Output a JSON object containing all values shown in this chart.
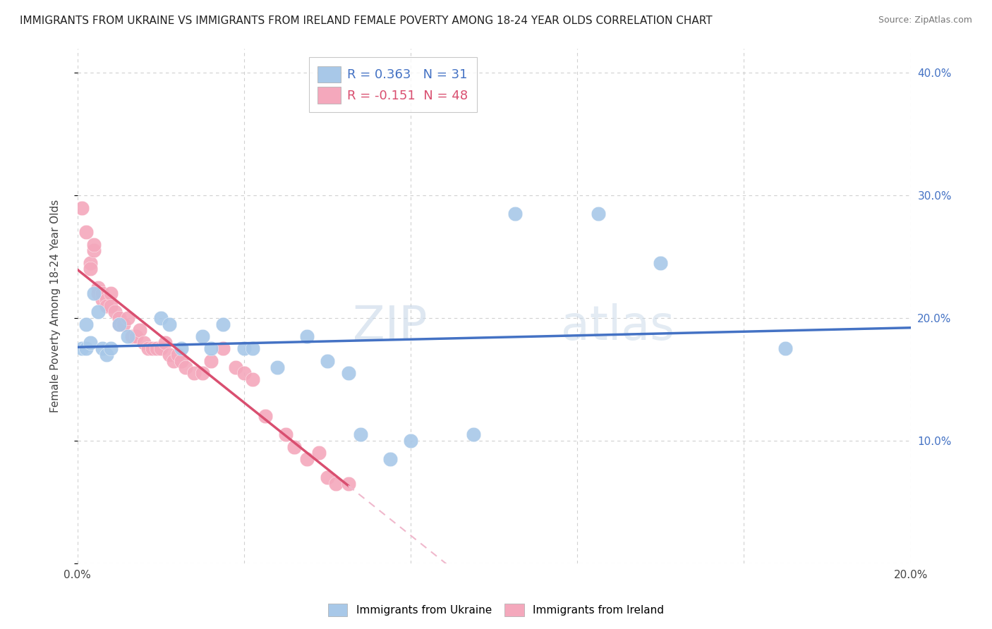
{
  "title": "IMMIGRANTS FROM UKRAINE VS IMMIGRANTS FROM IRELAND FEMALE POVERTY AMONG 18-24 YEAR OLDS CORRELATION CHART",
  "source": "Source: ZipAtlas.com",
  "ylabel": "Female Poverty Among 18-24 Year Olds",
  "xlim": [
    0.0,
    0.2
  ],
  "ylim": [
    0.0,
    0.42
  ],
  "xticks": [
    0.0,
    0.04,
    0.08,
    0.12,
    0.16,
    0.2
  ],
  "yticks": [
    0.0,
    0.1,
    0.2,
    0.3,
    0.4
  ],
  "ukraine_color": "#a8c8e8",
  "ireland_color": "#f4a8bc",
  "ukraine_line_color": "#4472c4",
  "ireland_line_color": "#d94f70",
  "ireland_line_dashed_color": "#f0b8cc",
  "R_ukraine": 0.363,
  "N_ukraine": 31,
  "R_ireland": -0.151,
  "N_ireland": 48,
  "watermark": "ZIPatlas",
  "background_color": "#ffffff",
  "grid_color": "#d0d0d0",
  "ukraine_scatter": [
    [
      0.001,
      0.175
    ],
    [
      0.002,
      0.195
    ],
    [
      0.002,
      0.175
    ],
    [
      0.003,
      0.18
    ],
    [
      0.004,
      0.22
    ],
    [
      0.005,
      0.205
    ],
    [
      0.006,
      0.175
    ],
    [
      0.007,
      0.17
    ],
    [
      0.008,
      0.175
    ],
    [
      0.01,
      0.195
    ],
    [
      0.012,
      0.185
    ],
    [
      0.02,
      0.2
    ],
    [
      0.022,
      0.195
    ],
    [
      0.025,
      0.175
    ],
    [
      0.03,
      0.185
    ],
    [
      0.032,
      0.175
    ],
    [
      0.035,
      0.195
    ],
    [
      0.04,
      0.175
    ],
    [
      0.042,
      0.175
    ],
    [
      0.048,
      0.16
    ],
    [
      0.055,
      0.185
    ],
    [
      0.06,
      0.165
    ],
    [
      0.065,
      0.155
    ],
    [
      0.068,
      0.105
    ],
    [
      0.075,
      0.085
    ],
    [
      0.08,
      0.1
    ],
    [
      0.095,
      0.105
    ],
    [
      0.105,
      0.285
    ],
    [
      0.125,
      0.285
    ],
    [
      0.14,
      0.245
    ],
    [
      0.17,
      0.175
    ]
  ],
  "ireland_scatter": [
    [
      0.001,
      0.29
    ],
    [
      0.002,
      0.27
    ],
    [
      0.003,
      0.245
    ],
    [
      0.003,
      0.24
    ],
    [
      0.004,
      0.255
    ],
    [
      0.004,
      0.26
    ],
    [
      0.005,
      0.225
    ],
    [
      0.005,
      0.22
    ],
    [
      0.006,
      0.215
    ],
    [
      0.006,
      0.22
    ],
    [
      0.007,
      0.215
    ],
    [
      0.007,
      0.21
    ],
    [
      0.008,
      0.22
    ],
    [
      0.008,
      0.21
    ],
    [
      0.009,
      0.205
    ],
    [
      0.01,
      0.2
    ],
    [
      0.01,
      0.195
    ],
    [
      0.011,
      0.195
    ],
    [
      0.012,
      0.2
    ],
    [
      0.013,
      0.185
    ],
    [
      0.014,
      0.185
    ],
    [
      0.015,
      0.19
    ],
    [
      0.016,
      0.18
    ],
    [
      0.017,
      0.175
    ],
    [
      0.018,
      0.175
    ],
    [
      0.019,
      0.175
    ],
    [
      0.02,
      0.175
    ],
    [
      0.021,
      0.18
    ],
    [
      0.022,
      0.17
    ],
    [
      0.023,
      0.165
    ],
    [
      0.024,
      0.17
    ],
    [
      0.025,
      0.165
    ],
    [
      0.026,
      0.16
    ],
    [
      0.028,
      0.155
    ],
    [
      0.03,
      0.155
    ],
    [
      0.032,
      0.165
    ],
    [
      0.035,
      0.175
    ],
    [
      0.038,
      0.16
    ],
    [
      0.04,
      0.155
    ],
    [
      0.042,
      0.15
    ],
    [
      0.045,
      0.12
    ],
    [
      0.05,
      0.105
    ],
    [
      0.052,
      0.095
    ],
    [
      0.055,
      0.085
    ],
    [
      0.058,
      0.09
    ],
    [
      0.06,
      0.07
    ],
    [
      0.062,
      0.065
    ],
    [
      0.065,
      0.065
    ]
  ]
}
